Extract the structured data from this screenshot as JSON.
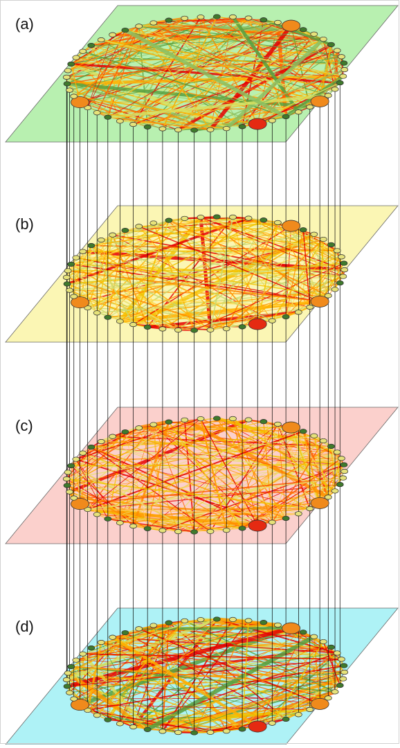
{
  "figure": {
    "layers": [
      {
        "label": "(a)",
        "color": "#b8f0b0",
        "edge_palette": "red-green"
      },
      {
        "label": "(b)",
        "color": "#fbf6b4",
        "edge_palette": "yellow"
      },
      {
        "label": "(c)",
        "color": "#fbd0cc",
        "edge_palette": "orange"
      },
      {
        "label": "(d)",
        "color": "#aef2f6",
        "edge_palette": "mixed"
      }
    ],
    "node_count": 54,
    "node_colors": {
      "light": "#e6e27a",
      "dark": "#3f7a2c",
      "orange": "#f08a1c",
      "red": "#e52a12"
    },
    "edge_colors": [
      "#e60000",
      "#ff5a00",
      "#ff9a00",
      "#f2c400",
      "#d8e060",
      "#58a040"
    ],
    "connector_color": "#000000"
  }
}
